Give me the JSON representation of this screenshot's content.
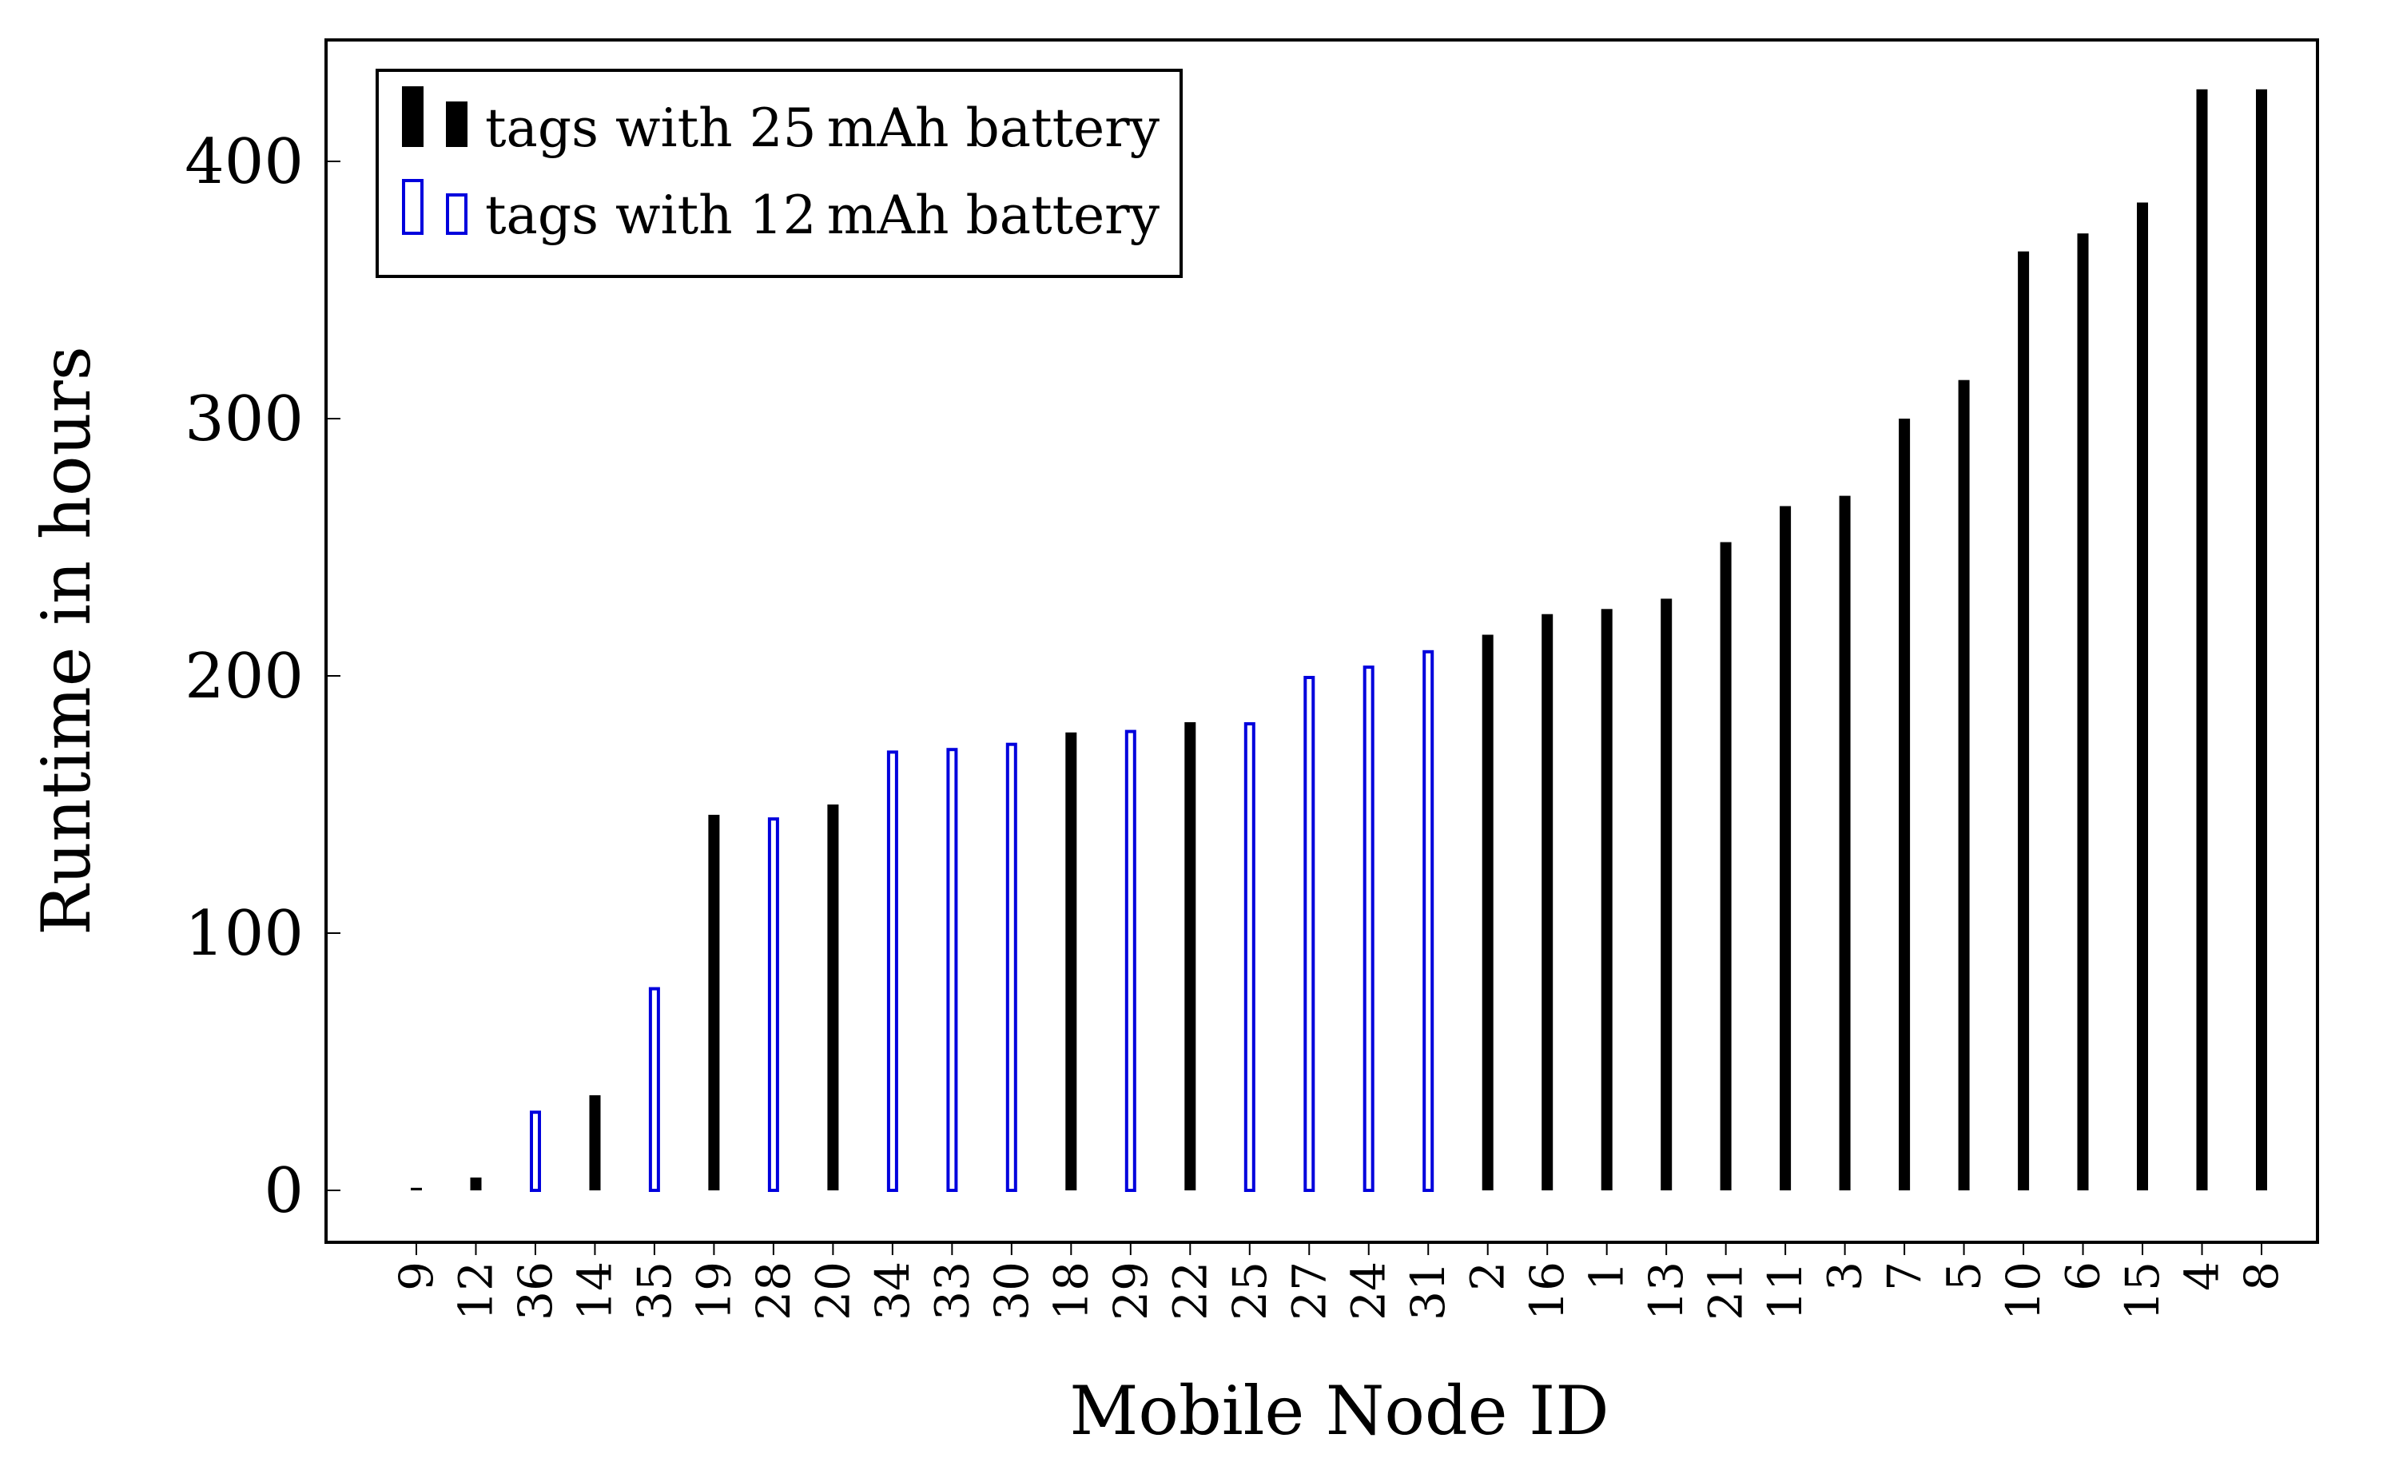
{
  "colors": {
    "series_25": "#000000",
    "series_12": "#0000dd",
    "axis": "#000000",
    "background": "#ffffff"
  },
  "chart_data": {
    "type": "bar",
    "title": "",
    "xlabel": "Mobile Node ID",
    "ylabel": "Runtime in hours",
    "ylim": [
      -20,
      445
    ],
    "yticks": [
      0,
      100,
      200,
      300,
      400
    ],
    "grid": false,
    "legend_position": "top-left",
    "legend": [
      {
        "series": "25mAh",
        "label": "tags with 25 mAh battery"
      },
      {
        "series": "12mAh",
        "label": "tags with 12 mAh battery"
      }
    ],
    "categories": [
      "9",
      "12",
      "36",
      "14",
      "35",
      "19",
      "28",
      "20",
      "34",
      "33",
      "30",
      "18",
      "29",
      "22",
      "25",
      "27",
      "24",
      "31",
      "2",
      "16",
      "1",
      "13",
      "21",
      "11",
      "3",
      "7",
      "5",
      "10",
      "6",
      "15",
      "4",
      "8"
    ],
    "values": [
      1,
      5,
      31,
      37,
      79,
      146,
      145,
      150,
      171,
      172,
      174,
      178,
      179,
      182,
      182,
      200,
      204,
      210,
      216,
      224,
      226,
      230,
      252,
      266,
      270,
      300,
      315,
      365,
      372,
      384,
      428,
      428
    ],
    "battery": [
      "25mAh",
      "25mAh",
      "12mAh",
      "25mAh",
      "12mAh",
      "25mAh",
      "12mAh",
      "25mAh",
      "12mAh",
      "12mAh",
      "12mAh",
      "25mAh",
      "12mAh",
      "25mAh",
      "12mAh",
      "12mAh",
      "12mAh",
      "12mAh",
      "25mAh",
      "25mAh",
      "25mAh",
      "25mAh",
      "25mAh",
      "25mAh",
      "25mAh",
      "25mAh",
      "25mAh",
      "25mAh",
      "25mAh",
      "25mAh",
      "25mAh",
      "25mAh"
    ]
  }
}
